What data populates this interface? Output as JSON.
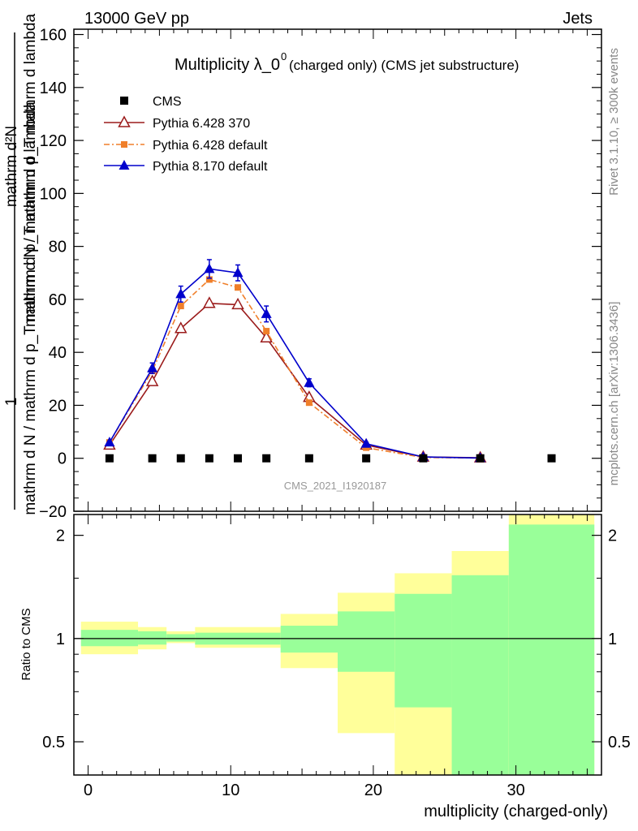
{
  "header": {
    "energy_label": "13000 GeV pp",
    "category_label": "Jets",
    "watermark": "CMS_2021_I1920187",
    "rivet_label": "Rivet 3.1.10, ≥ 300k events",
    "site_label": "mcplots.cern.ch [arXiv:1306.3436]"
  },
  "chart_data": [
    {
      "type": "scatter",
      "panel": "main",
      "title": "Multiplicity λ_0",
      "title_superscript": "0",
      "title_suffix": "(charged only) (CMS jet substructure)",
      "ylabel_main": "mathrm d N / mathrm d p_T mathrm d lambda",
      "ylabel_top": "mathrm d²N",
      "ylabel_denom": "mathrm d N / mathrm d p_T mathrm d p_T mathrm d lambda",
      "ylabel_one": "1",
      "xlim": [
        -1,
        36
      ],
      "ylim": [
        -20,
        162
      ],
      "yticks": [
        -20,
        0,
        20,
        40,
        60,
        80,
        100,
        120,
        140,
        160
      ],
      "grid": false,
      "legend_position": "top-left",
      "series": [
        {
          "name": "CMS",
          "marker": "square",
          "color": "#000000",
          "x": [
            1.5,
            4.5,
            6.5,
            8.5,
            10.5,
            12.5,
            15.5,
            19.5,
            23.5,
            27.5,
            32.5
          ],
          "y": [
            0,
            0,
            0,
            0,
            0,
            0,
            0,
            0,
            0,
            0,
            0
          ]
        },
        {
          "name": "Pythia 6.428 370",
          "marker": "open-triangle",
          "color": "#9b1b1b",
          "x": [
            1.5,
            4.5,
            6.5,
            8.5,
            10.5,
            12.5,
            15.5,
            19.5,
            23.5,
            27.5
          ],
          "y": [
            5,
            29,
            49,
            58.5,
            58,
            45.5,
            23,
            5,
            0.5,
            0.2
          ]
        },
        {
          "name": "Pythia 6.428 default",
          "marker": "filled-square-small",
          "line": "dash-dot",
          "color": "#f07f2a",
          "x": [
            1.5,
            4.5,
            6.5,
            8.5,
            10.5,
            12.5,
            15.5,
            19.5,
            23.5,
            27.5
          ],
          "y": [
            6,
            33,
            57.5,
            67.5,
            64.5,
            48,
            21,
            4,
            0.3,
            0.1
          ]
        },
        {
          "name": "Pythia 8.170 default",
          "marker": "filled-triangle",
          "color": "#0000cc",
          "x": [
            1.5,
            4.5,
            6.5,
            8.5,
            10.5,
            12.5,
            15.5,
            19.5,
            23.5,
            27.5
          ],
          "y": [
            6,
            34,
            62,
            71.5,
            70,
            54.5,
            28.5,
            5.5,
            0.5,
            0.1
          ],
          "err": [
            0.5,
            2,
            3,
            3.5,
            3,
            3,
            1.5,
            0.5,
            0.1,
            0.05
          ]
        }
      ]
    },
    {
      "type": "area",
      "panel": "ratio",
      "xlabel": "multiplicity (charged-only)",
      "ylabel": "Ratio to CMS",
      "xlim": [
        -1,
        36
      ],
      "ylim": [
        0.4,
        2.3
      ],
      "xticks": [
        0,
        10,
        20,
        30
      ],
      "yticks": [
        0.5,
        1,
        2
      ],
      "log_y": true,
      "reference": 1,
      "bands": {
        "edges": [
          -0.5,
          3.5,
          5.5,
          7.5,
          13.5,
          17.5,
          21.5,
          25.5,
          29.5,
          35.5
        ],
        "yellow_lo": [
          0.9,
          0.93,
          0.97,
          0.94,
          0.82,
          0.53,
          0.32,
          0.32,
          0.32
        ],
        "yellow_hi": [
          1.12,
          1.08,
          1.05,
          1.08,
          1.18,
          1.36,
          1.55,
          1.8,
          2.4
        ],
        "green_lo": [
          0.95,
          0.96,
          0.98,
          0.96,
          0.91,
          0.8,
          0.63,
          0.32,
          0.32
        ],
        "green_hi": [
          1.06,
          1.05,
          1.03,
          1.04,
          1.09,
          1.2,
          1.35,
          1.53,
          2.15
        ]
      },
      "band_colors": {
        "yellow": "#ffff9a",
        "green": "#99ff99"
      }
    }
  ]
}
